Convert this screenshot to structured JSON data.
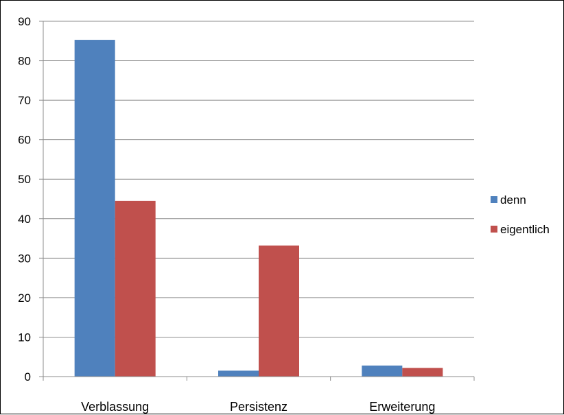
{
  "chart_data": {
    "type": "bar",
    "categories": [
      "Verblassung",
      "Persistenz",
      "Erweiterung"
    ],
    "series": [
      {
        "name": "denn",
        "values": [
          85.3,
          1.5,
          2.8
        ],
        "color": "#4F81BD"
      },
      {
        "name": "eigentlich",
        "values": [
          44.5,
          33.2,
          2.2
        ],
        "color": "#C0504D"
      }
    ],
    "ylim": [
      0,
      90
    ],
    "yticks": [
      0,
      10,
      20,
      30,
      40,
      50,
      60,
      70,
      80,
      90
    ],
    "grid": true,
    "legend_position": "right",
    "title": "",
    "xlabel": "",
    "ylabel": ""
  }
}
